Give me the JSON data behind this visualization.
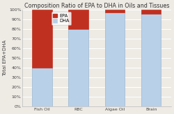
{
  "title": "Composition Ratio of EPA to DHA in Oils and Tissues",
  "categories": [
    "Fish Oil",
    "RBC",
    "Algae Oil",
    "Brain"
  ],
  "dha_values": [
    40,
    80,
    97,
    96
  ],
  "epa_values": [
    60,
    20,
    3,
    4
  ],
  "dha_color": "#b8d0e8",
  "epa_color": "#c03020",
  "ylabel": "Total EPA+DHA",
  "ylim": [
    0,
    100
  ],
  "yticks": [
    0,
    10,
    20,
    30,
    40,
    50,
    60,
    70,
    80,
    90,
    100
  ],
  "ytick_labels": [
    "0%",
    "10%",
    "20%",
    "30%",
    "40%",
    "50%",
    "60%",
    "70%",
    "80%",
    "90%",
    "100%"
  ],
  "background_color": "#eeeae4",
  "plot_bg_color": "#eeeae4",
  "title_fontsize": 5.8,
  "tick_fontsize": 4.5,
  "ylabel_fontsize": 5.0,
  "bar_width": 0.55,
  "bar_edge_color": "#9ab8d0",
  "grid_color": "#ffffff",
  "legend_fontsize": 4.8
}
